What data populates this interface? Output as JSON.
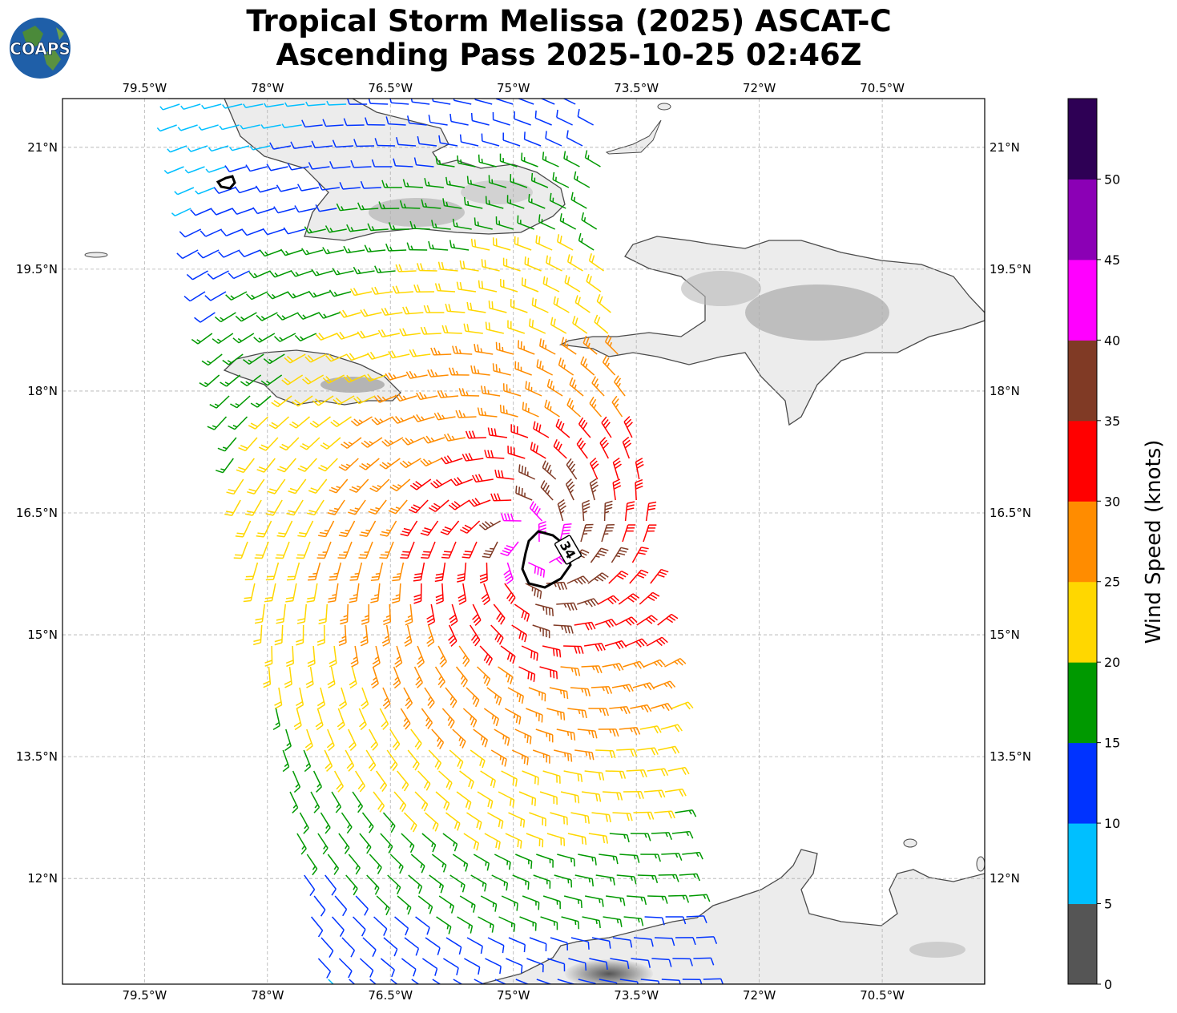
{
  "title": {
    "line1": "Tropical Storm Melissa (2025) ASCAT-C",
    "line2": "Ascending Pass 2025-10-25 02:46Z"
  },
  "logo": {
    "text": "COAPS",
    "icon": "globe-icon"
  },
  "map": {
    "lon_range": [
      -80.5,
      -69.25
    ],
    "lat_range": [
      10.7,
      21.6
    ],
    "lon_ticks": [
      "79.5°W",
      "78°W",
      "76.5°W",
      "75°W",
      "73.5°W",
      "72°W",
      "70.5°W"
    ],
    "lon_tick_values": [
      -79.5,
      -78.0,
      -76.5,
      -75.0,
      -73.5,
      -72.0,
      -70.5
    ],
    "lat_ticks": [
      "21°N",
      "19.5°N",
      "18°N",
      "16.5°N",
      "15°N",
      "13.5°N",
      "12°N"
    ],
    "lat_tick_values": [
      21.0,
      19.5,
      18.0,
      16.5,
      15.0,
      13.5,
      12.0
    ],
    "storm_center": {
      "lon": -74.8,
      "lat": 16.1
    },
    "contour_label": "34"
  },
  "colorbar": {
    "label": "Wind Speed (knots)",
    "ticks": [
      "0",
      "5",
      "10",
      "15",
      "20",
      "25",
      "30",
      "35",
      "40",
      "45",
      "50"
    ],
    "colors": [
      "#555555",
      "#00bfff",
      "#0033ff",
      "#009900",
      "#ffd700",
      "#ff8c00",
      "#ff0000",
      "#803a25",
      "#ff00ff",
      "#8b00b5",
      "#2e0055"
    ]
  },
  "colors": {
    "land": "#eaeaea",
    "coast": "#4a4a4a",
    "grid": "#b0b0b0"
  }
}
